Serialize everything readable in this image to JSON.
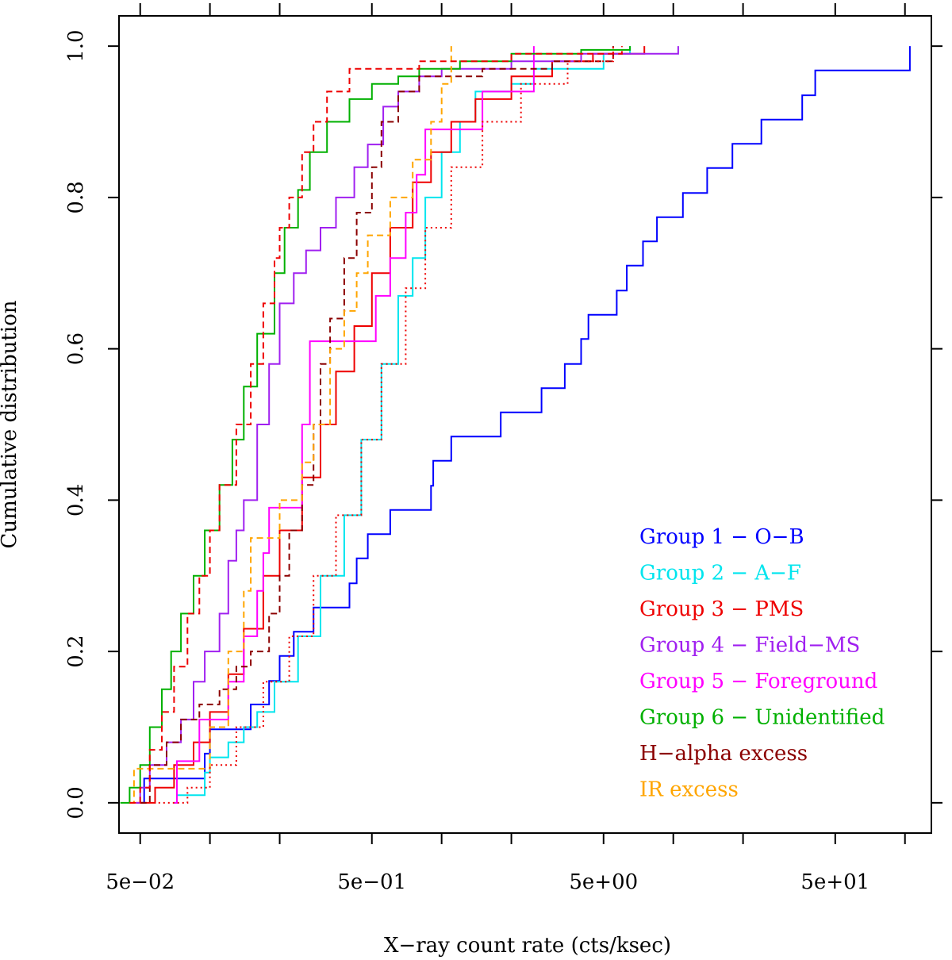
{
  "chart_data": {
    "type": "line",
    "subtype": "empirical-cumulative-distribution",
    "title": "",
    "xlabel": "X−ray count rate (cts/ksec)",
    "ylabel": "Cumulative distribution",
    "xscale": "log10",
    "xlim": [
      0.0405,
      130
    ],
    "ylim": [
      -0.04,
      1.04
    ],
    "x_ticks": [
      0.05,
      0.1,
      0.2,
      0.5,
      1,
      2,
      5,
      10,
      20,
      50,
      100
    ],
    "x_tick_labels": [
      {
        "value": 0.05,
        "label": "5e−02"
      },
      {
        "value": 0.5,
        "label": "5e−01"
      },
      {
        "value": 5,
        "label": "5e+00"
      },
      {
        "value": 50,
        "label": "5e+01"
      }
    ],
    "y_ticks": [
      0.0,
      0.2,
      0.4,
      0.6,
      0.8,
      1.0
    ],
    "y_tick_labels": [
      "0.0",
      "0.2",
      "0.4",
      "0.6",
      "0.8",
      "1.0"
    ],
    "grid": false,
    "legend_position": "bottom-right",
    "series": [
      {
        "name": "Group 1 − O−B",
        "color": "#0000ff",
        "style": "solid",
        "points": [
          [
            0.05,
            0
          ],
          [
            0.052,
            0.032
          ],
          [
            0.09,
            0.032
          ],
          [
            0.095,
            0.065
          ],
          [
            0.1,
            0.097
          ],
          [
            0.15,
            0.13
          ],
          [
            0.18,
            0.161
          ],
          [
            0.2,
            0.194
          ],
          [
            0.23,
            0.226
          ],
          [
            0.28,
            0.258
          ],
          [
            0.4,
            0.29
          ],
          [
            0.43,
            0.323
          ],
          [
            0.48,
            0.355
          ],
          [
            0.6,
            0.387
          ],
          [
            0.9,
            0.419
          ],
          [
            0.92,
            0.452
          ],
          [
            1.1,
            0.484
          ],
          [
            1.8,
            0.516
          ],
          [
            2.7,
            0.548
          ],
          [
            3.4,
            0.58
          ],
          [
            4,
            0.613
          ],
          [
            4.3,
            0.645
          ],
          [
            5.7,
            0.677
          ],
          [
            6.3,
            0.71
          ],
          [
            7.4,
            0.742
          ],
          [
            8.5,
            0.774
          ],
          [
            11,
            0.806
          ],
          [
            14,
            0.839
          ],
          [
            18,
            0.871
          ],
          [
            24,
            0.903
          ],
          [
            36,
            0.935
          ],
          [
            41,
            0.968
          ],
          [
            105,
            1.0
          ]
        ]
      },
      {
        "name": "Group 2 − A−F",
        "color": "#00e5ee",
        "style": "solid",
        "points": [
          [
            0.07,
            0
          ],
          [
            0.072,
            0.01
          ],
          [
            0.09,
            0.01
          ],
          [
            0.095,
            0.04
          ],
          [
            0.1,
            0.06
          ],
          [
            0.12,
            0.08
          ],
          [
            0.14,
            0.1
          ],
          [
            0.16,
            0.12
          ],
          [
            0.19,
            0.16
          ],
          [
            0.24,
            0.22
          ],
          [
            0.3,
            0.3
          ],
          [
            0.38,
            0.38
          ],
          [
            0.45,
            0.48
          ],
          [
            0.55,
            0.58
          ],
          [
            0.65,
            0.67
          ],
          [
            0.75,
            0.72
          ],
          [
            0.85,
            0.8
          ],
          [
            1.0,
            0.86
          ],
          [
            1.2,
            0.9
          ],
          [
            1.4,
            0.94
          ],
          [
            2.0,
            0.95
          ],
          [
            2.5,
            0.97
          ],
          [
            5.0,
            0.99
          ],
          [
            6.5,
            1.0
          ]
        ]
      },
      {
        "name": "Group 3 − PMS",
        "color": "#ee0000",
        "style": "solid",
        "points": [
          [
            0.048,
            0
          ],
          [
            0.058,
            0.02
          ],
          [
            0.07,
            0.05
          ],
          [
            0.085,
            0.08
          ],
          [
            0.1,
            0.12
          ],
          [
            0.12,
            0.17
          ],
          [
            0.14,
            0.23
          ],
          [
            0.17,
            0.3
          ],
          [
            0.2,
            0.36
          ],
          [
            0.25,
            0.43
          ],
          [
            0.3,
            0.5
          ],
          [
            0.35,
            0.57
          ],
          [
            0.42,
            0.63
          ],
          [
            0.5,
            0.7
          ],
          [
            0.6,
            0.76
          ],
          [
            0.75,
            0.82
          ],
          [
            0.9,
            0.86
          ],
          [
            1.1,
            0.9
          ],
          [
            1.4,
            0.93
          ],
          [
            2.0,
            0.96
          ],
          [
            3.0,
            0.98
          ],
          [
            4.5,
            0.99
          ],
          [
            7.5,
            1.0
          ]
        ]
      },
      {
        "name": "Group 4 − Field−MS",
        "color": "#a020f0",
        "style": "solid",
        "points": [
          [
            0.048,
            0
          ],
          [
            0.05,
            0.02
          ],
          [
            0.055,
            0.05
          ],
          [
            0.065,
            0.08
          ],
          [
            0.075,
            0.11
          ],
          [
            0.085,
            0.16
          ],
          [
            0.095,
            0.2
          ],
          [
            0.11,
            0.25
          ],
          [
            0.12,
            0.32
          ],
          [
            0.13,
            0.36
          ],
          [
            0.14,
            0.4
          ],
          [
            0.16,
            0.5
          ],
          [
            0.18,
            0.58
          ],
          [
            0.2,
            0.66
          ],
          [
            0.23,
            0.7
          ],
          [
            0.26,
            0.73
          ],
          [
            0.3,
            0.76
          ],
          [
            0.35,
            0.8
          ],
          [
            0.42,
            0.84
          ],
          [
            0.48,
            0.87
          ],
          [
            0.56,
            0.92
          ],
          [
            0.65,
            0.94
          ],
          [
            0.8,
            0.96
          ],
          [
            1.0,
            0.97
          ],
          [
            2.0,
            0.98
          ],
          [
            4.0,
            0.99
          ],
          [
            10.5,
            1.0
          ]
        ]
      },
      {
        "name": "Group 5 − Foreground",
        "color": "#ff00ff",
        "style": "solid",
        "points": [
          [
            0.07,
            0
          ],
          [
            0.072,
            0.055
          ],
          [
            0.09,
            0.11
          ],
          [
            0.12,
            0.16
          ],
          [
            0.14,
            0.22
          ],
          [
            0.16,
            0.28
          ],
          [
            0.17,
            0.33
          ],
          [
            0.18,
            0.39
          ],
          [
            0.25,
            0.5
          ],
          [
            0.27,
            0.61
          ],
          [
            0.5,
            0.61
          ],
          [
            0.52,
            0.67
          ],
          [
            0.6,
            0.72
          ],
          [
            0.7,
            0.78
          ],
          [
            0.78,
            0.83
          ],
          [
            0.85,
            0.89
          ],
          [
            1.0,
            0.89
          ],
          [
            1.5,
            0.94
          ],
          [
            2.4,
            0.94
          ],
          [
            2.5,
            1.0
          ]
        ]
      },
      {
        "name": "Group 6 − Unidentified",
        "color": "#00b000",
        "style": "solid",
        "points": [
          [
            0.041,
            0
          ],
          [
            0.045,
            0.02
          ],
          [
            0.05,
            0.05
          ],
          [
            0.055,
            0.1
          ],
          [
            0.062,
            0.15
          ],
          [
            0.068,
            0.2
          ],
          [
            0.075,
            0.25
          ],
          [
            0.085,
            0.3
          ],
          [
            0.095,
            0.36
          ],
          [
            0.11,
            0.42
          ],
          [
            0.125,
            0.48
          ],
          [
            0.14,
            0.55
          ],
          [
            0.16,
            0.62
          ],
          [
            0.19,
            0.7
          ],
          [
            0.21,
            0.76
          ],
          [
            0.24,
            0.81
          ],
          [
            0.27,
            0.86
          ],
          [
            0.32,
            0.9
          ],
          [
            0.4,
            0.93
          ],
          [
            0.5,
            0.95
          ],
          [
            0.65,
            0.96
          ],
          [
            0.8,
            0.97
          ],
          [
            1.2,
            0.98
          ],
          [
            2.0,
            0.99
          ],
          [
            4.0,
            0.995
          ],
          [
            6.5,
            1.0
          ]
        ]
      },
      {
        "name": "H−alpha excess",
        "color": "#8b0000",
        "style": "dashed",
        "points": [
          [
            0.05,
            0
          ],
          [
            0.055,
            0.05
          ],
          [
            0.065,
            0.08
          ],
          [
            0.075,
            0.11
          ],
          [
            0.09,
            0.13
          ],
          [
            0.11,
            0.15
          ],
          [
            0.13,
            0.18
          ],
          [
            0.15,
            0.2
          ],
          [
            0.18,
            0.25
          ],
          [
            0.2,
            0.3
          ],
          [
            0.22,
            0.36
          ],
          [
            0.25,
            0.42
          ],
          [
            0.28,
            0.5
          ],
          [
            0.3,
            0.58
          ],
          [
            0.33,
            0.64
          ],
          [
            0.38,
            0.72
          ],
          [
            0.43,
            0.78
          ],
          [
            0.5,
            0.84
          ],
          [
            0.55,
            0.9
          ],
          [
            0.65,
            0.94
          ],
          [
            0.8,
            0.96
          ],
          [
            1.5,
            0.97
          ],
          [
            3.0,
            0.98
          ],
          [
            5.5,
            1.0
          ]
        ]
      },
      {
        "name": "IR excess",
        "color": "#ffa500",
        "style": "dashed",
        "points": [
          [
            0.045,
            0
          ],
          [
            0.047,
            0.045
          ],
          [
            0.09,
            0.045
          ],
          [
            0.1,
            0.1
          ],
          [
            0.12,
            0.2
          ],
          [
            0.14,
            0.28
          ],
          [
            0.15,
            0.35
          ],
          [
            0.2,
            0.4
          ],
          [
            0.25,
            0.45
          ],
          [
            0.28,
            0.5
          ],
          [
            0.33,
            0.6
          ],
          [
            0.38,
            0.65
          ],
          [
            0.43,
            0.7
          ],
          [
            0.48,
            0.75
          ],
          [
            0.6,
            0.8
          ],
          [
            0.75,
            0.85
          ],
          [
            0.9,
            0.9
          ],
          [
            1.0,
            0.95
          ],
          [
            1.1,
            1.0
          ]
        ]
      },
      {
        "name": "Group 3 − PMS (dashed)",
        "color": "#ee0000",
        "style": "dashed",
        "points": [
          [
            0.045,
            0
          ],
          [
            0.05,
            0.02
          ],
          [
            0.055,
            0.07
          ],
          [
            0.062,
            0.12
          ],
          [
            0.07,
            0.18
          ],
          [
            0.08,
            0.25
          ],
          [
            0.09,
            0.3
          ],
          [
            0.1,
            0.36
          ],
          [
            0.11,
            0.42
          ],
          [
            0.13,
            0.5
          ],
          [
            0.15,
            0.58
          ],
          [
            0.17,
            0.66
          ],
          [
            0.19,
            0.72
          ],
          [
            0.2,
            0.76
          ],
          [
            0.22,
            0.8
          ],
          [
            0.25,
            0.86
          ],
          [
            0.28,
            0.9
          ],
          [
            0.32,
            0.94
          ],
          [
            0.4,
            0.97
          ],
          [
            0.8,
            0.98
          ],
          [
            2.0,
            0.99
          ],
          [
            6.0,
            1.0
          ]
        ]
      },
      {
        "name": "Group 3 − PMS (dotted)",
        "color": "#ee0000",
        "style": "dotted",
        "points": [
          [
            0.06,
            0
          ],
          [
            0.08,
            0.02
          ],
          [
            0.1,
            0.05
          ],
          [
            0.13,
            0.1
          ],
          [
            0.17,
            0.16
          ],
          [
            0.22,
            0.22
          ],
          [
            0.28,
            0.3
          ],
          [
            0.35,
            0.38
          ],
          [
            0.45,
            0.48
          ],
          [
            0.55,
            0.58
          ],
          [
            0.7,
            0.68
          ],
          [
            0.85,
            0.76
          ],
          [
            1.1,
            0.84
          ],
          [
            1.5,
            0.9
          ],
          [
            2.2,
            0.95
          ],
          [
            3.5,
            0.98
          ],
          [
            5.5,
            1.0
          ]
        ]
      }
    ],
    "legend": [
      {
        "label": "Group 1 − O−B",
        "color": "#0000ff"
      },
      {
        "label": "Group 2 − A−F",
        "color": "#00e5ee"
      },
      {
        "label": "Group 3 − PMS",
        "color": "#ee0000"
      },
      {
        "label": "Group 4 − Field−MS",
        "color": "#a020f0"
      },
      {
        "label": "Group 5 − Foreground",
        "color": "#ff00ff"
      },
      {
        "label": "Group 6 − Unidentified",
        "color": "#00b000"
      },
      {
        "label": "H−alpha excess",
        "color": "#8b0000"
      },
      {
        "label": "IR excess",
        "color": "#ffa500"
      }
    ]
  }
}
